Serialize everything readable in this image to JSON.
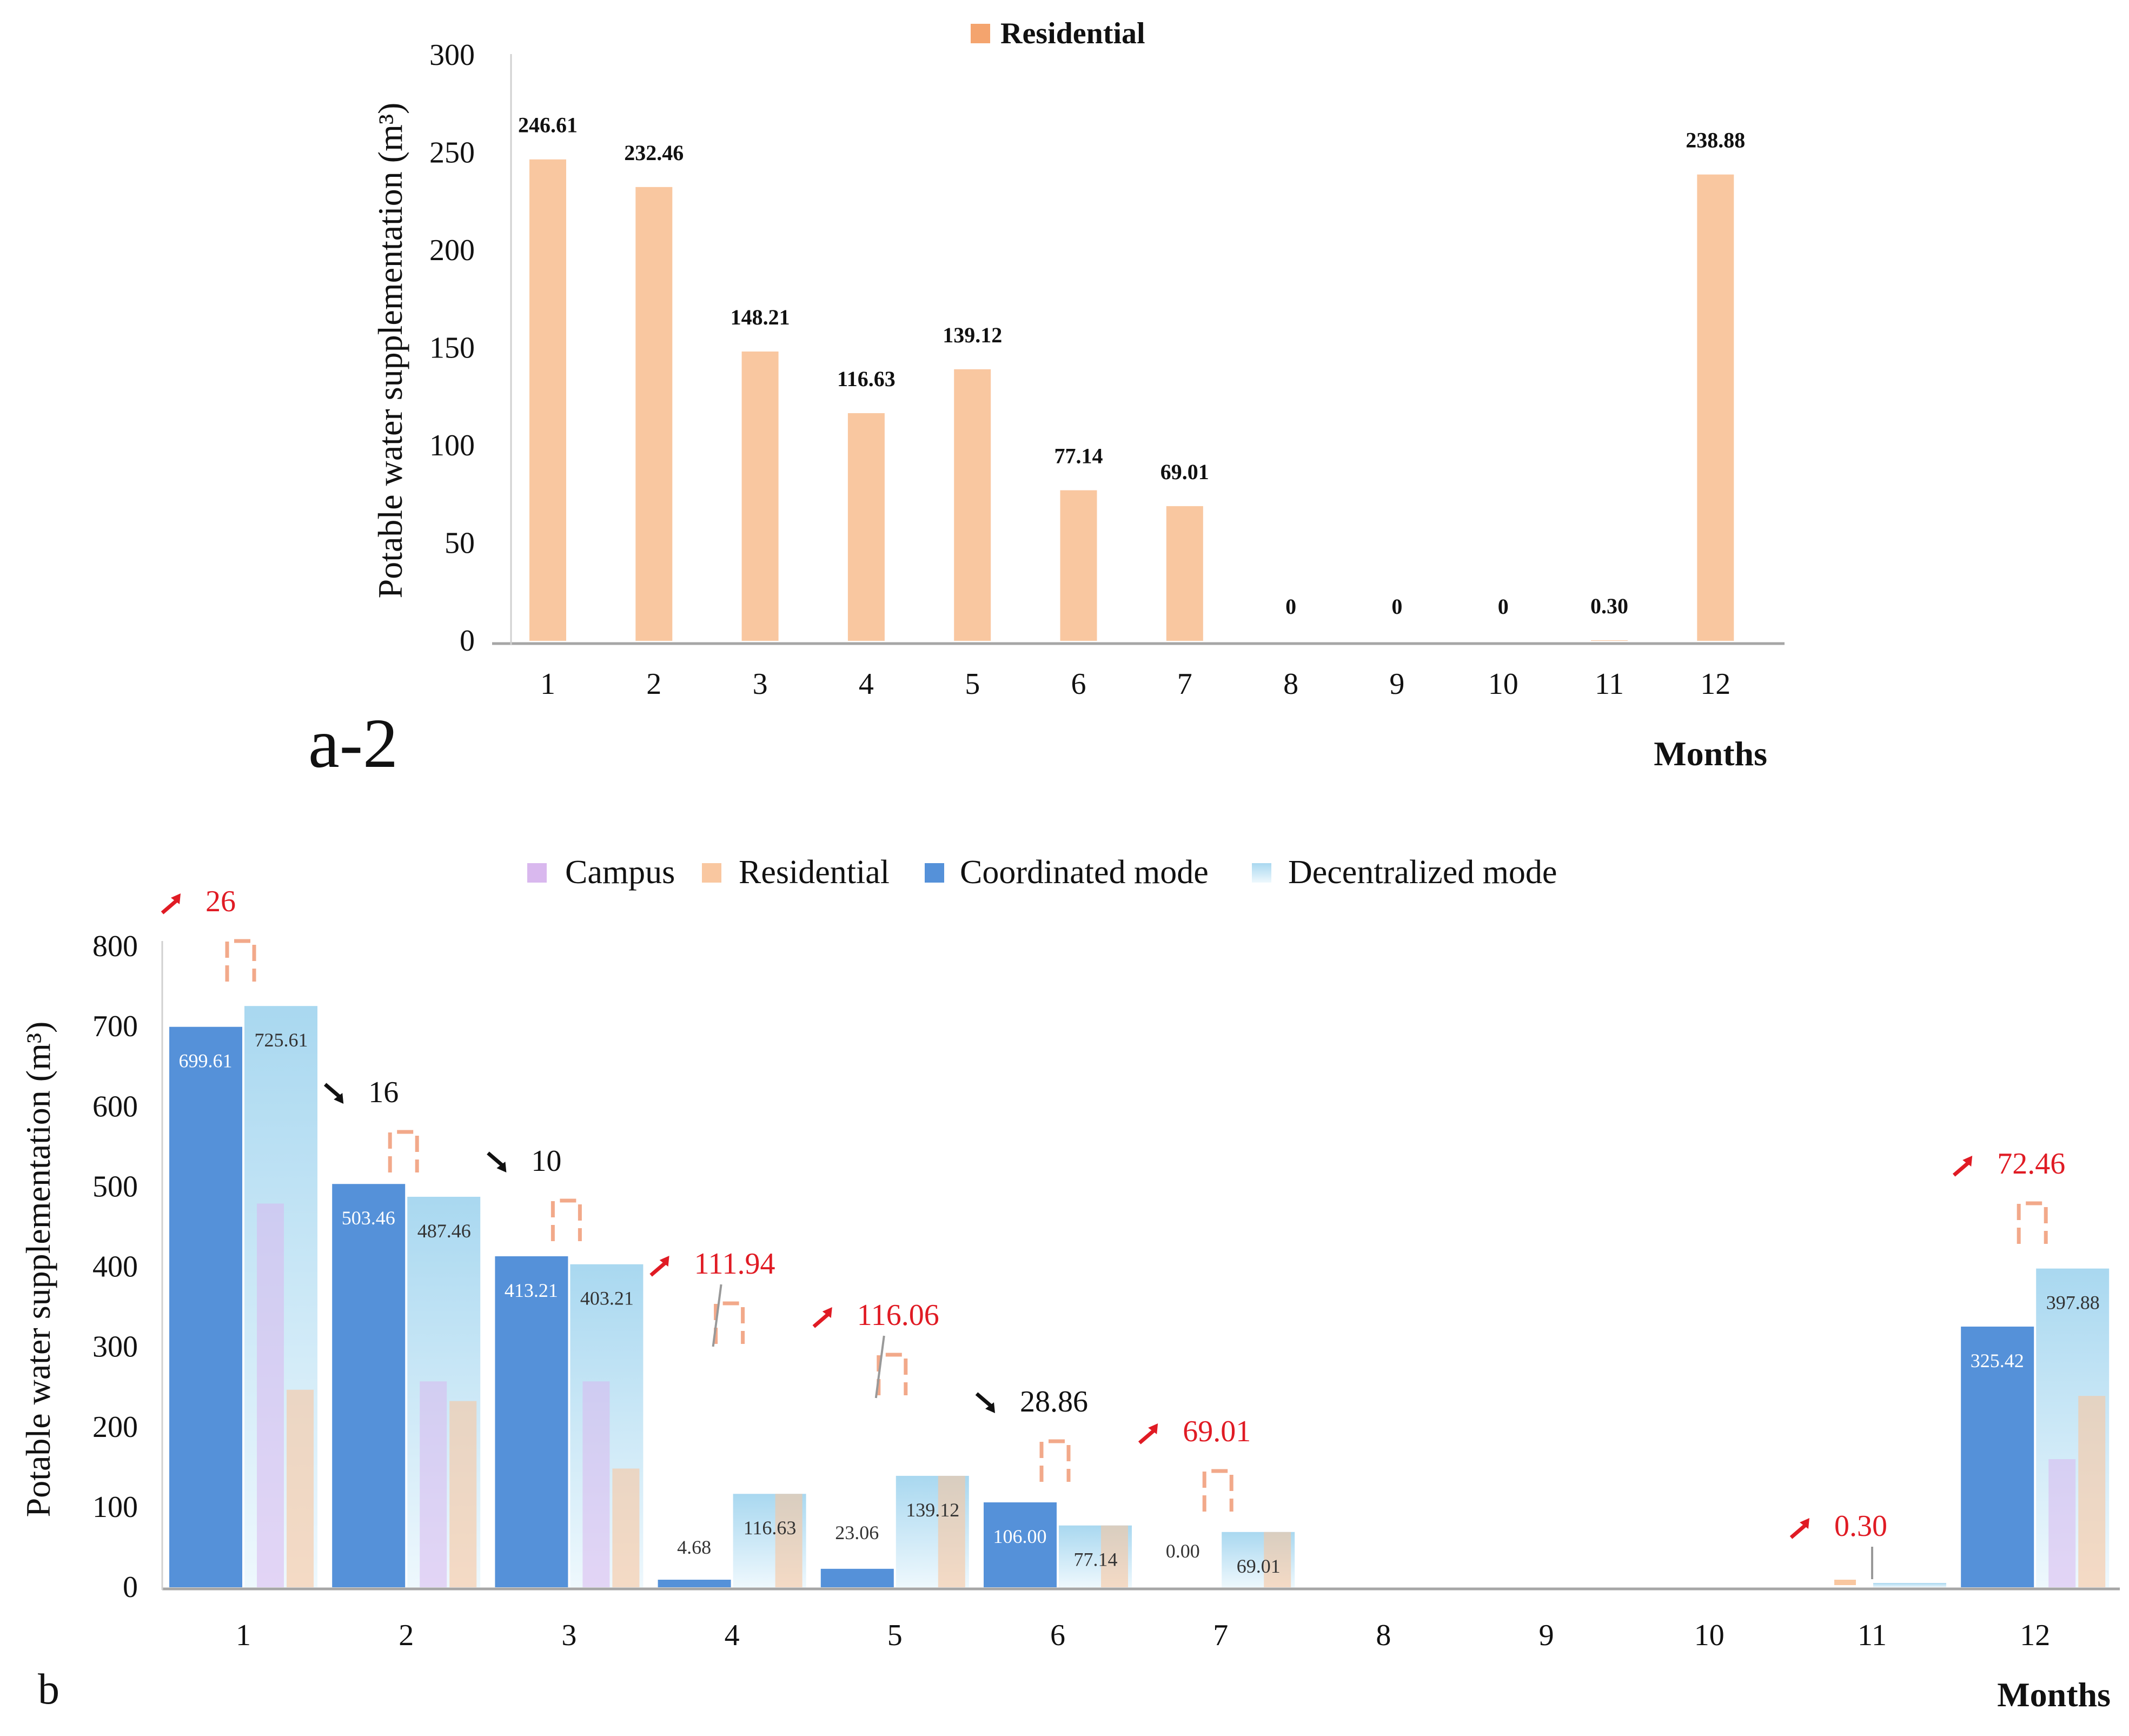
{
  "colors": {
    "residential": "#F9C7A0",
    "residential_legend": "#F4A46E",
    "campus": "#D9B8EE",
    "coordinated": "#5591D9",
    "decentralized_top": "#A9D8F0",
    "decentralized_bottom": "#EEF8FD",
    "increase": "#E01B24",
    "decrease": "#111111",
    "bracket": "#F2A98A",
    "axis": "#A6A6A6"
  },
  "chart_data": [
    {
      "id": "a2",
      "type": "bar",
      "panel_label": "a-2",
      "title": "",
      "legend": [
        "Residential"
      ],
      "legend_placement": "top-center",
      "xlabel": "Months",
      "ylabel": "Potable water supplementation (m³)",
      "ylim": [
        0,
        300
      ],
      "yticks": [
        "0",
        "50",
        "100",
        "150",
        "200",
        "250",
        "300"
      ],
      "categories": [
        "1",
        "2",
        "3",
        "4",
        "5",
        "6",
        "7",
        "8",
        "9",
        "10",
        "11",
        "12"
      ],
      "series": [
        {
          "name": "Residential",
          "values": [
            246.61,
            232.46,
            148.21,
            116.63,
            139.12,
            77.14,
            69.01,
            0,
            0,
            0,
            0.3,
            238.88
          ]
        }
      ],
      "data_labels": [
        "246.61",
        "232.46",
        "148.21",
        "116.63",
        "139.12",
        "77.14",
        "69.01",
        "0",
        "0",
        "0",
        "0.30",
        "238.88"
      ],
      "grid": false
    },
    {
      "id": "b",
      "type": "bar",
      "panel_label": "b",
      "title": "",
      "legend": [
        "Campus",
        "Residential",
        "Coordinated mode",
        "Decentralized mode"
      ],
      "legend_placement": "top-center",
      "xlabel": "Months",
      "ylabel": "Potable water supplementation (m³)",
      "ylim": [
        0,
        800
      ],
      "yticks": [
        "0",
        "100",
        "200",
        "300",
        "400",
        "500",
        "600",
        "700",
        "800"
      ],
      "categories": [
        "1",
        "2",
        "3",
        "4",
        "5",
        "6",
        "7",
        "8",
        "9",
        "10",
        "11",
        "12"
      ],
      "series": [
        {
          "name": "Coordinated mode",
          "values": [
            699.61,
            503.46,
            413.21,
            4.68,
            23.06,
            106.0,
            0.0,
            null,
            null,
            null,
            null,
            325.42
          ],
          "labels": [
            "699.61",
            "503.46",
            "413.21",
            "4.68",
            "23.06",
            "106.00",
            "0.00",
            "",
            "",
            "",
            "",
            "325.42"
          ]
        },
        {
          "name": "Decentralized mode",
          "values": [
            725.61,
            487.46,
            403.21,
            116.63,
            139.12,
            77.14,
            69.01,
            null,
            null,
            null,
            0.3,
            397.88
          ],
          "labels": [
            "725.61",
            "487.46",
            "403.21",
            "116.63",
            "139.12",
            "77.14",
            "69.01",
            "",
            "",
            "",
            "",
            "397.88"
          ]
        },
        {
          "name": "Campus",
          "values": [
            479,
            257,
            257,
            0,
            0,
            0,
            0,
            0,
            0,
            0,
            0,
            160
          ]
        },
        {
          "name": "Residential",
          "values": [
            246.61,
            232.46,
            148.21,
            116.63,
            139.12,
            77.14,
            69.01,
            0,
            0,
            0,
            0.3,
            238.88
          ]
        }
      ],
      "differences": [
        {
          "month": "1",
          "value": "26",
          "direction": "up"
        },
        {
          "month": "2",
          "value": "16",
          "direction": "down"
        },
        {
          "month": "3",
          "value": "10",
          "direction": "down"
        },
        {
          "month": "4",
          "value": "111.94",
          "direction": "up"
        },
        {
          "month": "5",
          "value": "116.06",
          "direction": "up"
        },
        {
          "month": "6",
          "value": "28.86",
          "direction": "down"
        },
        {
          "month": "7",
          "value": "69.01",
          "direction": "up"
        },
        {
          "month": "11",
          "value": "0.30",
          "direction": "up"
        },
        {
          "month": "12",
          "value": "72.46",
          "direction": "up"
        }
      ],
      "grid": false
    }
  ]
}
